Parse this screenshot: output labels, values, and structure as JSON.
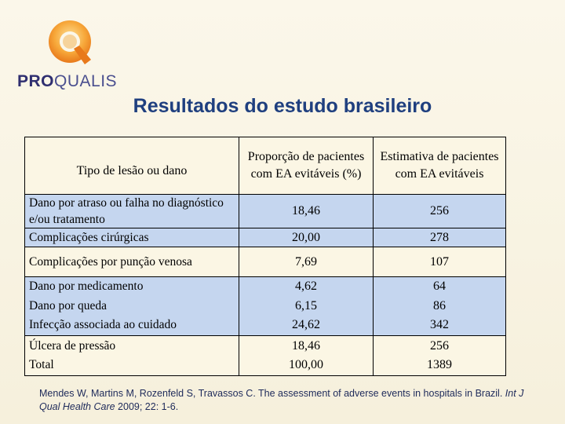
{
  "logo": {
    "prefix": "PRO",
    "suffix": "QUALIS"
  },
  "title": "Resultados do estudo brasileiro",
  "table": {
    "headers": [
      "Tipo de lesão ou dano",
      "Proporção de pacientes com EA evitáveis (%)",
      "Estimativa de pacientes com EA evitáveis"
    ],
    "rows": [
      {
        "label": "Dano por atraso ou falha no diagnóstico e/ou tratamento",
        "proportion": "18,46",
        "estimate": "256"
      },
      {
        "label": "Complicações cirúrgicas",
        "proportion": "20,00",
        "estimate": "278"
      },
      {
        "label": "Complicações por punção venosa",
        "proportion": "7,69",
        "estimate": "107"
      },
      {
        "label": "Dano por medicamento",
        "proportion": "4,62",
        "estimate": "64"
      },
      {
        "label": "Dano por queda",
        "proportion": "6,15",
        "estimate": "86"
      },
      {
        "label": "Infecção associada ao cuidado",
        "proportion": "24,62",
        "estimate": "342"
      },
      {
        "label": "Úlcera de pressão",
        "proportion": "18,46",
        "estimate": "256"
      },
      {
        "label": "Total",
        "proportion": "100,00",
        "estimate": "1389"
      }
    ]
  },
  "reference": {
    "part1": "Mendes W, Martins M, Rozenfeld S, Travassos C. The assessment of adverse events in hospitals in Brazil. ",
    "journal": "Int J Qual Health Care",
    "part2": " 2009; 22: 1-6."
  },
  "colors": {
    "title": "#1f3f7f",
    "row_blue": "#c5d6ef",
    "row_cream": "#fbf6e4",
    "logo_orange": "#f08a1c"
  }
}
